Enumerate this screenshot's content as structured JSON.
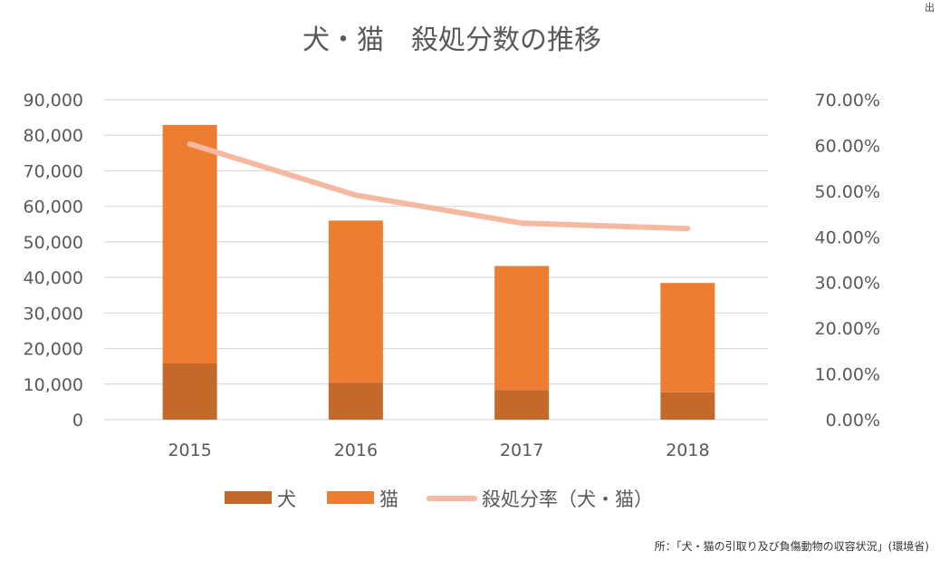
{
  "corner_text": "出",
  "source": "所：「犬・猫の引取り及び負傷動物の収容状況」(環境省)",
  "chart_data": {
    "type": "bar",
    "stacked": true,
    "title": "犬・猫　殺処分数の推移",
    "categories": [
      "2015",
      "2016",
      "2017",
      "2018"
    ],
    "series": [
      {
        "name": "犬",
        "type": "bar",
        "axis": "left",
        "color": "#C5692A",
        "values": [
          15811,
          10424,
          8362,
          7687
        ]
      },
      {
        "name": "猫",
        "type": "bar",
        "axis": "left",
        "color": "#ED7D31",
        "values": [
          67091,
          45574,
          34854,
          30757
        ]
      },
      {
        "name": "殺処分率（犬・猫）",
        "type": "line",
        "axis": "right",
        "color": "#F4B9A0",
        "values": [
          0.603,
          0.491,
          0.43,
          0.418
        ]
      }
    ],
    "left_axis": {
      "min": 0,
      "max": 90000,
      "step": 10000,
      "tick_labels": [
        "0",
        "10,000",
        "20,000",
        "30,000",
        "40,000",
        "50,000",
        "60,000",
        "70,000",
        "80,000",
        "90,000"
      ]
    },
    "right_axis": {
      "min": 0,
      "max": 0.7,
      "step": 0.1,
      "tick_labels": [
        "0.00%",
        "10.00%",
        "20.00%",
        "30.00%",
        "40.00%",
        "50.00%",
        "60.00%",
        "70.00%"
      ]
    },
    "grid": true,
    "legend_position": "bottom"
  }
}
